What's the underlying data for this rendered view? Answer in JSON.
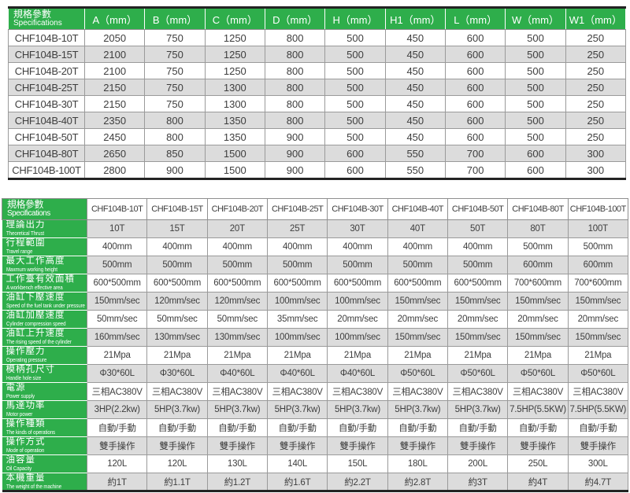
{
  "colors": {
    "accent_green": "#2eae4b",
    "stripe_gray": "#dcdcdc",
    "border_dark": "#232323",
    "border_gray": "#8f8f8f",
    "text_gray": "#3e3e3e"
  },
  "top_table": {
    "header_cn": "規格參數",
    "header_en": "Specifications",
    "columns": [
      "A（mm）",
      "B（mm）",
      "C（mm）",
      "D（mm）",
      "H（mm）",
      "H1（mm）",
      "L（mm）",
      "W（mm）",
      "W1（mm）"
    ],
    "rows": [
      {
        "model": "CHF104B-10T",
        "values": [
          "2050",
          "750",
          "1250",
          "800",
          "500",
          "450",
          "600",
          "500",
          "250"
        ]
      },
      {
        "model": "CHF104B-15T",
        "values": [
          "2100",
          "750",
          "1250",
          "800",
          "500",
          "450",
          "600",
          "500",
          "250"
        ]
      },
      {
        "model": "CHF104B-20T",
        "values": [
          "2100",
          "750",
          "1250",
          "800",
          "500",
          "450",
          "600",
          "500",
          "250"
        ]
      },
      {
        "model": "CHF104B-25T",
        "values": [
          "2150",
          "750",
          "1300",
          "800",
          "500",
          "450",
          "600",
          "500",
          "250"
        ]
      },
      {
        "model": "CHF104B-30T",
        "values": [
          "2150",
          "750",
          "1300",
          "800",
          "500",
          "450",
          "600",
          "500",
          "250"
        ]
      },
      {
        "model": "CHF104B-40T",
        "values": [
          "2350",
          "800",
          "1350",
          "800",
          "500",
          "450",
          "600",
          "500",
          "250"
        ]
      },
      {
        "model": "CHF104B-50T",
        "values": [
          "2450",
          "800",
          "1350",
          "900",
          "500",
          "450",
          "600",
          "500",
          "250"
        ]
      },
      {
        "model": "CHF104B-80T",
        "values": [
          "2650",
          "850",
          "1500",
          "900",
          "600",
          "550",
          "700",
          "600",
          "300"
        ]
      },
      {
        "model": "CHF104B-100T",
        "values": [
          "2800",
          "900",
          "1500",
          "900",
          "600",
          "550",
          "700",
          "600",
          "300"
        ]
      }
    ]
  },
  "bottom_table": {
    "header_cn": "規格參數",
    "header_en": "Specifications",
    "models": [
      "CHF104B-10T",
      "CHF104B-15T",
      "CHF104B-20T",
      "CHF104B-25T",
      "CHF104B-30T",
      "CHF104B-40T",
      "CHF104B-50T",
      "CHF104B-80T",
      "CHF104B-100T"
    ],
    "rows": [
      {
        "cn": "理論出力",
        "en": "Theoretical Thrust",
        "values": [
          "10T",
          "15T",
          "20T",
          "25T",
          "30T",
          "40T",
          "50T",
          "80T",
          "100T"
        ]
      },
      {
        "cn": "行程範圍",
        "en": "Travel range",
        "values": [
          "400mm",
          "400mm",
          "400mm",
          "400mm",
          "400mm",
          "400mm",
          "400mm",
          "500mm",
          "500mm"
        ]
      },
      {
        "cn": "最大工作高度",
        "en": "Maxmum working height",
        "values": [
          "500mm",
          "500mm",
          "500mm",
          "500mm",
          "500mm",
          "500mm",
          "500mm",
          "600mm",
          "600mm"
        ]
      },
      {
        "cn": "工作臺有效面積",
        "en": "A workbench effective area",
        "values": [
          "600*500mm",
          "600*500mm",
          "600*500mm",
          "600*500mm",
          "600*500mm",
          "600*500mm",
          "600*500mm",
          "700*600mm",
          "700*600mm"
        ]
      },
      {
        "cn": "油缸下壓速度",
        "en": "Speed of the fuel tank under pressure",
        "values": [
          "150mm/sec",
          "120mm/sec",
          "120mm/sec",
          "100mm/sec",
          "100mm/sec",
          "150mm/sec",
          "150mm/sec",
          "150mm/sec",
          "150mm/sec"
        ]
      },
      {
        "cn": "油缸加壓速度",
        "en": "Cylinder compression speed",
        "values": [
          "50mm/sec",
          "50mm/sec",
          "50mm/sec",
          "35mm/sec",
          "20mm/sec",
          "20mm/sec",
          "20mm/sec",
          "20mm/sec",
          "20mm/sec"
        ]
      },
      {
        "cn": "油缸上升速度",
        "en": "The rising speed of the cylinder",
        "values": [
          "160mm/sec",
          "130mm/sec",
          "130mm/sec",
          "100mm/sec",
          "100mm/sec",
          "150mm/sec",
          "150mm/sec",
          "150mm/sec",
          "150mm/sec"
        ]
      },
      {
        "cn": "操作壓力",
        "en": "Operating pressure",
        "values": [
          "21Mpa",
          "21Mpa",
          "21Mpa",
          "21Mpa",
          "21Mpa",
          "21Mpa",
          "21Mpa",
          "21Mpa",
          "21Mpa"
        ]
      },
      {
        "cn": "模柄孔尺寸",
        "en": "Handle hole size",
        "values": [
          "Φ30*60L",
          "Φ30*60L",
          "Φ40*60L",
          "Φ40*60L",
          "Φ40*60L",
          "Φ50*60L",
          "Φ50*60L",
          "Φ50*60L",
          "Φ50*60L"
        ]
      },
      {
        "cn": "電源",
        "en": "Power supply",
        "values": [
          "三相AC380V",
          "三相AC380V",
          "三相AC380V",
          "三相AC380V",
          "三相AC380V",
          "三相AC380V",
          "三相AC380V",
          "三相AC380V",
          "三相AC380V"
        ]
      },
      {
        "cn": "馬達功率",
        "en": "Motor power",
        "values": [
          "3HP(2.2kw)",
          "5HP(3.7kw)",
          "5HP(3.7kw)",
          "5HP(3.7kw)",
          "5HP(3.7kw)",
          "5HP(3.7kw)",
          "5HP(3.7kw)",
          "7.5HP(5.5KW)",
          "7.5HP(5.5KW)"
        ]
      },
      {
        "cn": "操作種類",
        "en": "The kinds of operations",
        "values": [
          "自動/手動",
          "自動/手動",
          "自動/手動",
          "自動/手動",
          "自動/手動",
          "自動/手動",
          "自動/手動",
          "自動/手動",
          "自動/手動"
        ]
      },
      {
        "cn": "操作方式",
        "en": "Mode of operation",
        "values": [
          "雙手操作",
          "雙手操作",
          "雙手操作",
          "雙手操作",
          "雙手操作",
          "雙手操作",
          "雙手操作",
          "雙手操作",
          "雙手操作"
        ]
      },
      {
        "cn": "油容量",
        "en": "Oil Capacity",
        "values": [
          "120L",
          "120L",
          "130L",
          "140L",
          "150L",
          "180L",
          "200L",
          "250L",
          "300L"
        ]
      },
      {
        "cn": "本機重量",
        "en": "The weight of the machine",
        "values": [
          "約1T",
          "約1.1T",
          "約1.2T",
          "約1.6T",
          "約2.2T",
          "約2.8T",
          "約3T",
          "約4T",
          "約4.7T"
        ]
      }
    ]
  }
}
